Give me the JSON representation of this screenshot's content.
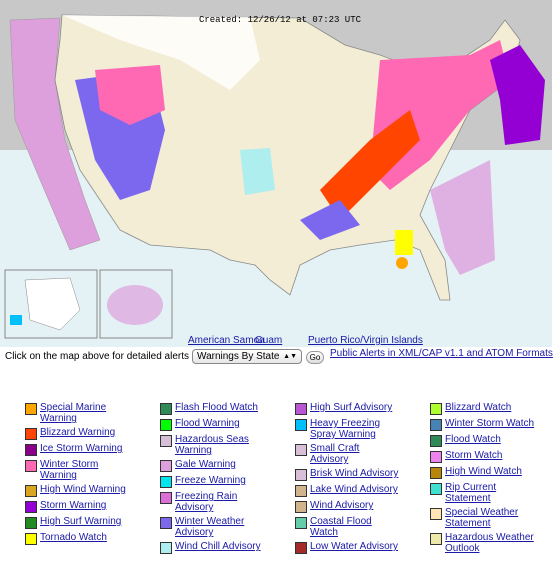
{
  "map": {
    "timestamp": "Created: 12/26/12 at 07:23 UTC",
    "links": [
      "American Samoa",
      "Guam",
      "Puerto Rico/Virgin Islands"
    ]
  },
  "controls": {
    "prompt": "Click on the map above for detailed alerts or",
    "select": "Warnings By State",
    "button": "Go",
    "feed_link": "Public Alerts in XML/CAP v1.1 and ATOM Formats"
  },
  "legend": {
    "columns": [
      [
        {
          "label": "Special Marine Warning",
          "color": "#ffa500"
        },
        {
          "label": "Blizzard Warning",
          "color": "#ff4500"
        },
        {
          "label": "Ice Storm Warning",
          "color": "#8b008b"
        },
        {
          "label": "Winter Storm Warning",
          "color": "#ff69b4"
        },
        {
          "label": "High Wind Warning",
          "color": "#daa520"
        },
        {
          "label": "Storm Warning",
          "color": "#9400d3"
        },
        {
          "label": "High Surf Warning",
          "color": "#228b22"
        },
        {
          "label": "Tornado Watch",
          "color": "#ffff00"
        }
      ],
      [
        {
          "label": "Flash Flood Watch",
          "color": "#2e8b57"
        },
        {
          "label": "Flood Warning",
          "color": "#00ff00"
        },
        {
          "label": "Hazardous Seas Warning",
          "color": "#d8bfd8"
        },
        {
          "label": "Gale Warning",
          "color": "#dda0dd"
        },
        {
          "label": "Freeze Warning",
          "color": "#00e5ee"
        },
        {
          "label": "Freezing Rain Advisory",
          "color": "#da70d6"
        },
        {
          "label": "Winter Weather Advisory",
          "color": "#7b68ee"
        },
        {
          "label": "Wind Chill Advisory",
          "color": "#afeeee"
        }
      ],
      [
        {
          "label": "High Surf Advisory",
          "color": "#ba55d3"
        },
        {
          "label": "Heavy Freezing Spray Warning",
          "color": "#00bfff"
        },
        {
          "label": "Small Craft Advisory",
          "color": "#d8bfd8"
        },
        {
          "label": "Brisk Wind Advisory",
          "color": "#d8bfd8"
        },
        {
          "label": "Lake Wind Advisory",
          "color": "#d2b48c"
        },
        {
          "label": "Wind Advisory",
          "color": "#d2b48c"
        },
        {
          "label": "Coastal Flood Watch",
          "color": "#66cdaa"
        },
        {
          "label": "Low Water Advisory",
          "color": "#a52a2a"
        }
      ],
      [
        {
          "label": "Blizzard Watch",
          "color": "#adff2f"
        },
        {
          "label": "Winter Storm Watch",
          "color": "#4682b4"
        },
        {
          "label": "Flood Watch",
          "color": "#2e8b57"
        },
        {
          "label": "Storm Watch",
          "color": "#ee82ee"
        },
        {
          "label": "High Wind Watch",
          "color": "#b8860b"
        },
        {
          "label": "Rip Current Statement",
          "color": "#40e0d0"
        },
        {
          "label": "Special Weather Statement",
          "color": "#ffe4b5"
        },
        {
          "label": "Hazardous Weather Outlook",
          "color": "#eee8aa"
        }
      ]
    ]
  }
}
